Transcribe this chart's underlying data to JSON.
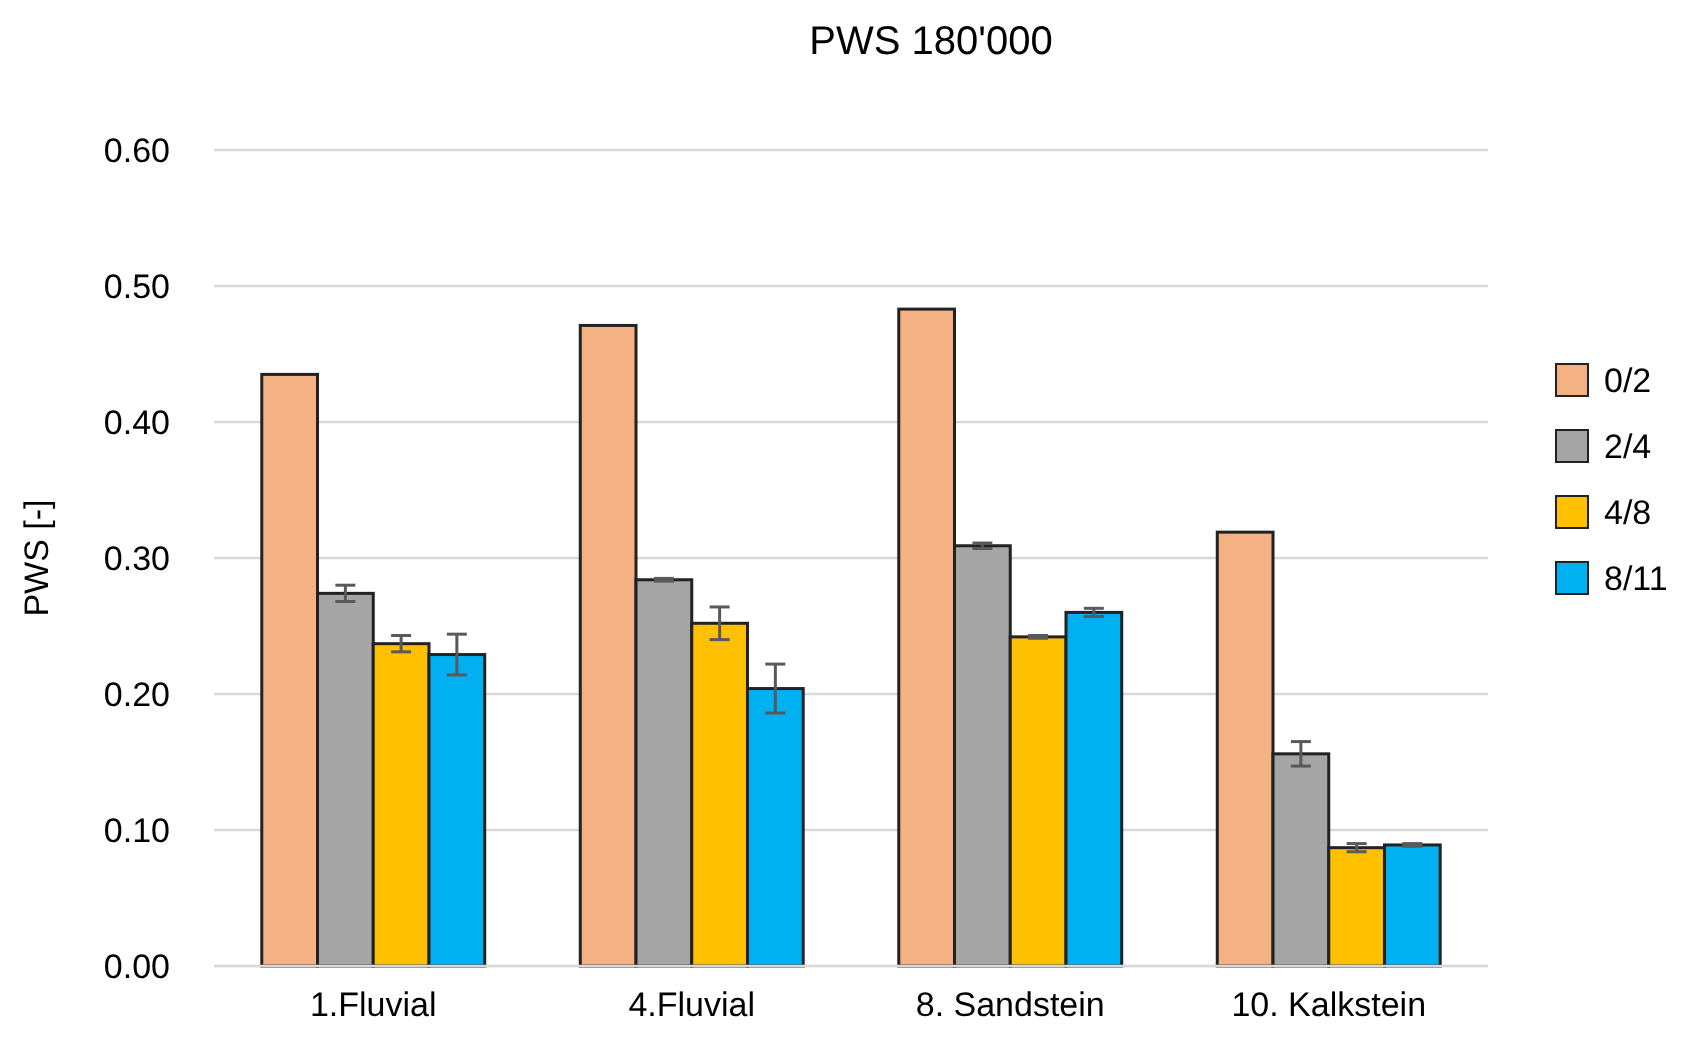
{
  "chart_data": {
    "type": "bar",
    "title": "PWS 180'000",
    "ylabel": "PWS [-]",
    "categories": [
      "1.Fluvial",
      "4.Fluvial",
      "8. Sandstein",
      "10. Kalkstein"
    ],
    "series": [
      {
        "name": "0/2",
        "color": "#f4b183",
        "values": [
          0.435,
          0.471,
          0.483,
          0.319
        ]
      },
      {
        "name": "2/4",
        "color": "#a5a5a5",
        "values": [
          0.274,
          0.284,
          0.309,
          0.156
        ],
        "errors": [
          0.006,
          0.001,
          0.002,
          0.009
        ]
      },
      {
        "name": "4/8",
        "color": "#ffc000",
        "values": [
          0.237,
          0.252,
          0.242,
          0.087
        ],
        "errors": [
          0.006,
          0.012,
          0.001,
          0.003
        ]
      },
      {
        "name": "8/11",
        "color": "#00b0f0",
        "values": [
          0.229,
          0.204,
          0.26,
          0.089
        ],
        "errors": [
          0.015,
          0.018,
          0.003,
          0.001
        ]
      }
    ],
    "ylim": [
      0,
      0.6
    ],
    "yticks": [
      {
        "value": 0,
        "label": "0.00"
      },
      {
        "value": 0.1,
        "label": "0.10"
      },
      {
        "value": 0.2,
        "label": "0.20"
      },
      {
        "value": 0.3,
        "label": "0.30"
      },
      {
        "value": 0.4,
        "label": "0.40"
      },
      {
        "value": 0.5,
        "label": "0.50"
      },
      {
        "value": 0.6,
        "label": "0.60"
      }
    ],
    "grid": "y",
    "legend": "right"
  }
}
